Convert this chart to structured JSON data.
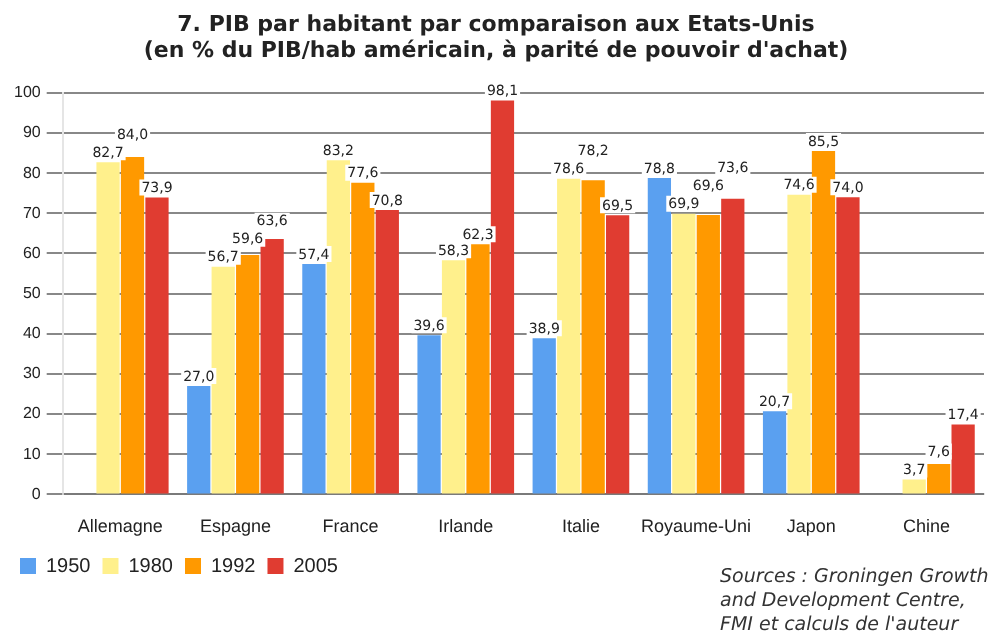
{
  "chart_data": {
    "type": "bar",
    "title": [
      "7. PIB par habitant par comparaison aux Etats-Unis",
      "(en % du PIB/hab américain, à parité de pouvoir d'achat)"
    ],
    "categories": [
      "Allemagne",
      "Espagne",
      "France",
      "Irlande",
      "Italie",
      "Royaume-Uni",
      "Japon",
      "Chine"
    ],
    "series": [
      {
        "name": "1950",
        "color": "#5aa0f0",
        "values": [
          null,
          27.0,
          57.4,
          39.6,
          38.9,
          78.8,
          20.7,
          null
        ],
        "value_labels": [
          null,
          "27,0",
          "57,4",
          "39,6",
          "38,9",
          "78,8",
          "20,7",
          null
        ]
      },
      {
        "name": "1980",
        "color": "#fff08c",
        "values": [
          82.7,
          56.7,
          83.2,
          58.3,
          78.6,
          69.9,
          74.6,
          3.7
        ],
        "value_labels": [
          "82,7",
          "56,7",
          "83,2",
          "58,3",
          "78,6",
          "69,9",
          "74,6",
          "3,7"
        ]
      },
      {
        "name": "1992",
        "color": "#ff9900",
        "values": [
          84.0,
          59.6,
          77.6,
          62.3,
          78.2,
          69.6,
          85.5,
          7.6
        ],
        "value_labels": [
          "84,0",
          "59,6",
          "77,6",
          "62,3",
          "78,2",
          "69,6",
          "85,5",
          "7,6"
        ]
      },
      {
        "name": "2005",
        "color": "#e03c31",
        "values": [
          73.9,
          63.6,
          70.8,
          98.1,
          69.5,
          73.6,
          74.0,
          17.4
        ],
        "value_labels": [
          "73,9",
          "63,6",
          "70,8",
          "98,1",
          "69,5",
          "73,6",
          "74,0",
          "17,4"
        ]
      }
    ],
    "ylim": [
      0,
      100
    ],
    "yticks": [
      0,
      10,
      20,
      30,
      40,
      50,
      60,
      70,
      80,
      90,
      100
    ],
    "grid": "y",
    "legend": "bottom",
    "annotations": [
      "Sources : Groningen Growth and Development Centre, FMI et calculs de l'auteur"
    ]
  }
}
